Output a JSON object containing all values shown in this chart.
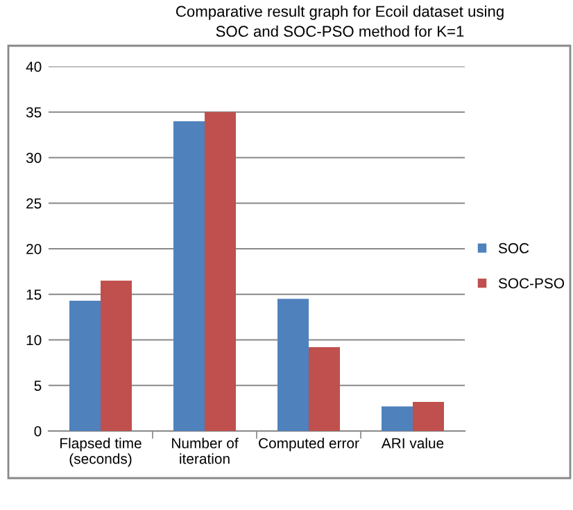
{
  "chart_data": {
    "type": "bar",
    "title": "Comparative result graph for Ecoil dataset using\nSOC and SOC-PSO method for K=1",
    "categories": [
      "Flapsed time\n(seconds)",
      "Number of\niteration",
      "Computed error",
      "ARI value"
    ],
    "series": [
      {
        "name": "SOC",
        "color": "#4f81bd",
        "values": [
          14.3,
          34,
          14.5,
          2.7
        ]
      },
      {
        "name": "SOC-PSO",
        "color": "#c0504d",
        "values": [
          16.5,
          35,
          9.2,
          3.2
        ]
      }
    ],
    "ylim": [
      0,
      40
    ],
    "yticks": [
      0,
      5,
      10,
      15,
      20,
      25,
      30,
      35,
      40
    ],
    "grid": "y",
    "legend": "right"
  }
}
